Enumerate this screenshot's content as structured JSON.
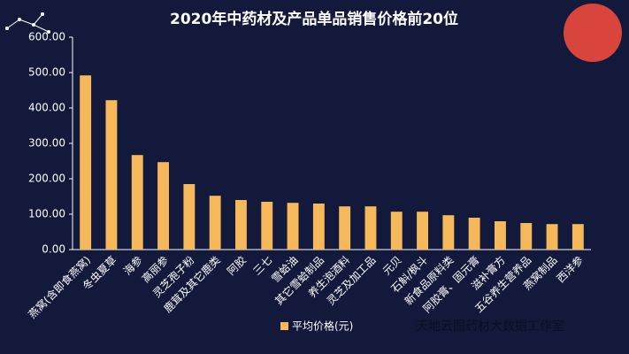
{
  "chart_data": {
    "type": "bar",
    "title": "2020年中药材及产品单品销售价格前20位",
    "categories": [
      "燕窝(含即食燕窝)",
      "冬虫夏草",
      "海参",
      "高丽参",
      "灵芝孢子粉",
      "鹿茸及其它鹿类",
      "阿胶",
      "三七",
      "雪蛤油",
      "其它雪蛤制品",
      "养生泡酒料",
      "灵芝及加工品",
      "元贝",
      "石斛/枫斗",
      "新食品原料类",
      "阿胶膏、固元膏",
      "滋补膏方",
      "五谷养生营养品",
      "燕窝制品",
      "西洋参"
    ],
    "series": [
      {
        "name": "平均价格(元)",
        "color": "#f5b85a",
        "values": [
          492,
          422,
          267,
          247,
          185,
          152,
          140,
          135,
          132,
          130,
          122,
          122,
          107,
          107,
          97,
          90,
          80,
          75,
          72,
          72
        ]
      }
    ],
    "ylim": [
      0,
      600
    ],
    "yticks": [
      {
        "value": 0,
        "label": "0.00"
      },
      {
        "value": 100,
        "label": "100.00"
      },
      {
        "value": 200,
        "label": "200.00"
      },
      {
        "value": 300,
        "label": "300.00"
      },
      {
        "value": 400,
        "label": "400.00"
      },
      {
        "value": 500,
        "label": "500.00"
      },
      {
        "value": 600,
        "label": "600.00"
      }
    ],
    "watermark": "天地云图药材大数据工作室"
  }
}
